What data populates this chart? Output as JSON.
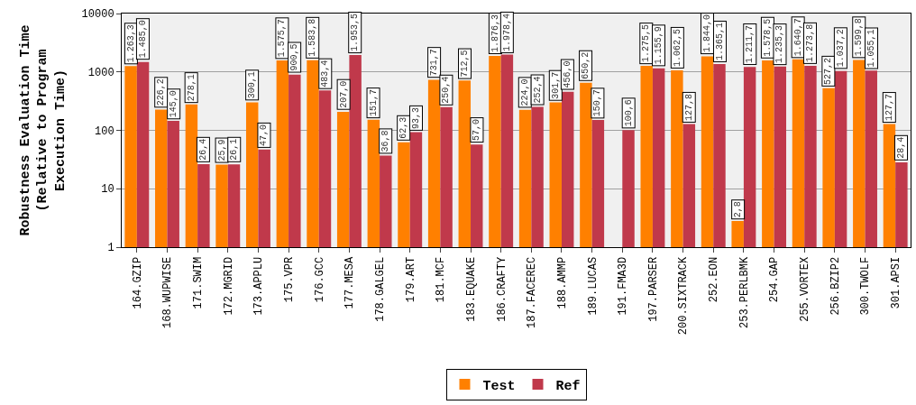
{
  "chart_data": {
    "type": "bar",
    "ylabel": "Robustness Evaluation Time\n(Relative to Program\nExecution Time)",
    "categories": [
      "164.GZIP",
      "168.WUPWISE",
      "171.SWIM",
      "172.MGRID",
      "173.APPLU",
      "175.VPR",
      "176.GCC",
      "177.MESA",
      "178.GALGEL",
      "179.ART",
      "181.MCF",
      "183.EQUAKE",
      "186.CRAFTY",
      "187.FACEREC",
      "188.AMMP",
      "189.LUCAS",
      "191.FMA3D",
      "197.PARSER",
      "200.SIXTRACK",
      "252.EON",
      "253.PERLBMK",
      "254.GAP",
      "255.VORTEX",
      "256.BZIP2",
      "300.TWOLF",
      "301.APSI"
    ],
    "series": [
      {
        "name": "Test",
        "color": "#ff8000",
        "values": [
          1263.3,
          226.2,
          278.1,
          25.9,
          300.1,
          1575.7,
          1583.8,
          207.0,
          151.7,
          62.3,
          731.7,
          712.5,
          1876.3,
          224.0,
          301.7,
          650.2,
          null,
          1275.5,
          1062.5,
          1844.0,
          2.8,
          1578.5,
          1640.7,
          527.2,
          1599.8,
          127.7
        ],
        "value_labels": [
          "1.263,3",
          "226,2",
          "278,1",
          "25,9",
          "300,1",
          "1.575,7",
          "1.583,8",
          "207,0",
          "151,7",
          "62,3",
          "731,7",
          "712,5",
          "1.876,3",
          "224,0",
          "301,7",
          "650,2",
          null,
          "1.275,5",
          "1.062,5",
          "1.844,0",
          "2,8",
          "1.578,5",
          "1.640,7",
          "527,2",
          "1.599,8",
          "127,7"
        ]
      },
      {
        "name": "Ref",
        "color": "#c0394b",
        "values": [
          1485.0,
          145.0,
          26.4,
          26.1,
          47.0,
          900.5,
          483.4,
          1953.5,
          36.8,
          93.3,
          250.4,
          57.0,
          1978.4,
          252.4,
          456.0,
          150.7,
          100.6,
          1155.9,
          127.8,
          1365.1,
          1211.7,
          1235.3,
          1273.8,
          1037.2,
          1055.1,
          28.4
        ],
        "value_labels": [
          "1.485,0",
          "145,0",
          "26,4",
          "26,1",
          "47,0",
          "900,5",
          "483,4",
          "1.953,5",
          "36,8",
          "93,3",
          "250,4",
          "57,0",
          "1.978,4",
          "252,4",
          "456,0",
          "150,7",
          "100,6",
          "1.155,9",
          "127,8",
          "1.365,1",
          "1.211,7",
          "1.235,3",
          "1.273,8",
          "1.037,2",
          "1.055,1",
          "28,4"
        ]
      }
    ],
    "log": "y",
    "ylim": [
      1,
      10000
    ],
    "yticks": [
      1,
      10,
      100,
      1000,
      10000
    ],
    "grid": "y",
    "legend": "bottom"
  }
}
